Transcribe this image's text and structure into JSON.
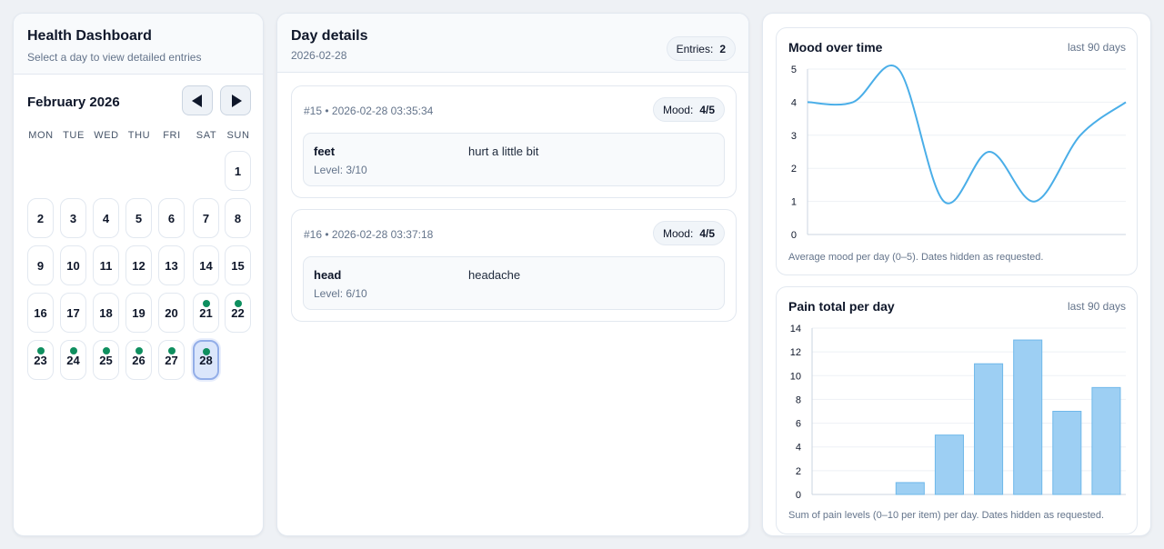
{
  "calendar": {
    "title": "Health Dashboard",
    "subtitle": "Select a day to view detailed entries",
    "month_label": "February 2026",
    "prev_label": "Previous month",
    "next_label": "Next month",
    "weekdays": [
      "MON",
      "TUE",
      "WED",
      "THU",
      "FRI",
      "SAT",
      "SUN"
    ],
    "first_weekday_index": 6,
    "days": [
      1,
      2,
      3,
      4,
      5,
      6,
      7,
      8,
      9,
      10,
      11,
      12,
      13,
      14,
      15,
      16,
      17,
      18,
      19,
      20,
      21,
      22,
      23,
      24,
      25,
      26,
      27,
      28
    ],
    "days_with_entries": [
      21,
      22,
      23,
      24,
      25,
      26,
      27,
      28
    ],
    "selected_day": 28
  },
  "details": {
    "title": "Day details",
    "date": "2026-02-28",
    "entries_label": "Entries:",
    "entries_count": "2",
    "mood_label": "Mood:",
    "entries": [
      {
        "meta": "#15 • 2026-02-28 03:35:34",
        "mood": "4/5",
        "item": {
          "name": "feet",
          "level": "Level: 3/10",
          "note": "hurt a little bit"
        }
      },
      {
        "meta": "#16 • 2026-02-28 03:37:18",
        "mood": "4/5",
        "item": {
          "name": "head",
          "level": "Level: 6/10",
          "note": "headache"
        }
      }
    ]
  },
  "mood_chart": {
    "title": "Mood over time",
    "range_label": "last 90 days",
    "footnote": "Average mood per day (0–5). Dates hidden as requested."
  },
  "pain_chart": {
    "title": "Pain total per day",
    "range_label": "last 90 days",
    "footnote": "Sum of pain levels (0–10 per item) per day. Dates hidden as requested."
  },
  "colors": {
    "line": "#4aaee8",
    "bar_fill": "#9dcff3",
    "bar_stroke": "#6fb8ea",
    "dot": "#0f8f5f",
    "selected": "#dbe6fb"
  },
  "chart_data": [
    {
      "type": "line",
      "title": "Mood over time",
      "x": [
        1,
        2,
        3,
        4,
        5,
        6,
        7,
        8
      ],
      "values": [
        4,
        4,
        5,
        1,
        2.5,
        1,
        3,
        4
      ],
      "ylim": [
        0,
        5
      ],
      "yticks": [
        0,
        1,
        2,
        3,
        4,
        5
      ],
      "grid": true,
      "legend": "none"
    },
    {
      "type": "bar",
      "title": "Pain total per day",
      "values": [
        0,
        0,
        1,
        5,
        11,
        13,
        7,
        9
      ],
      "ylim": [
        0,
        14
      ],
      "yticks": [
        0,
        2,
        4,
        6,
        8,
        10,
        12,
        14
      ],
      "grid": true,
      "legend": "none"
    }
  ]
}
